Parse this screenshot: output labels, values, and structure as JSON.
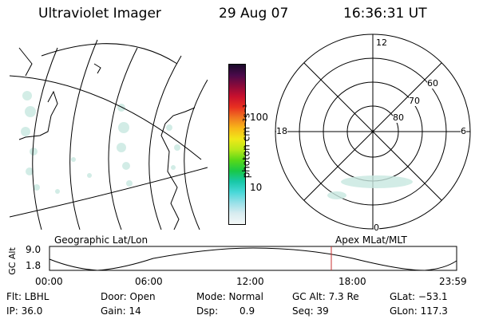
{
  "header": {
    "instrument": "Ultraviolet Imager",
    "date": "29 Aug 07",
    "time": "16:36:31 UT"
  },
  "colorbar": {
    "unit_label": "photon cm⁻²s⁻¹",
    "ticks": [
      "100",
      "10"
    ],
    "colors": [
      "#1a0a2a",
      "#4a0a4a",
      "#8a0a3a",
      "#c8102e",
      "#e83020",
      "#f07820",
      "#f8b818",
      "#f0e818",
      "#b8e818",
      "#58d818",
      "#18c848",
      "#18c8a8",
      "#48d8d8",
      "#98e0e8",
      "#d8ecf0",
      "#f4f8f8"
    ]
  },
  "polar_plot": {
    "labels": {
      "top": "12",
      "bottom": "0",
      "left": "18",
      "right": "6",
      "lat60": "60",
      "lat70": "70",
      "lat80": "80"
    }
  },
  "timeline": {
    "ylabel": "GC Alt",
    "yticks": [
      "9.0",
      "1.8"
    ],
    "left_label": "Geographic Lat/Lon",
    "right_label": "Apex  MLat/MLT",
    "xticks": [
      "00:00",
      "06:00",
      "12:00",
      "18:00",
      "23:59"
    ],
    "marker_time": "16:36",
    "marker_color": "#c83030"
  },
  "info": {
    "filter": "Flt: LBHL",
    "door": "Door: Open",
    "mode": "Mode: Normal",
    "gc_alt": "GC Alt: 7.3 Re",
    "glat": "GLat: −53.1",
    "ip": "IP: 36.0",
    "gain": "Gain: 14",
    "dsp_label": "Dsp:",
    "dsp_value": "0.9",
    "seq": "Seq: 39",
    "glon": "GLon: 117.3"
  }
}
